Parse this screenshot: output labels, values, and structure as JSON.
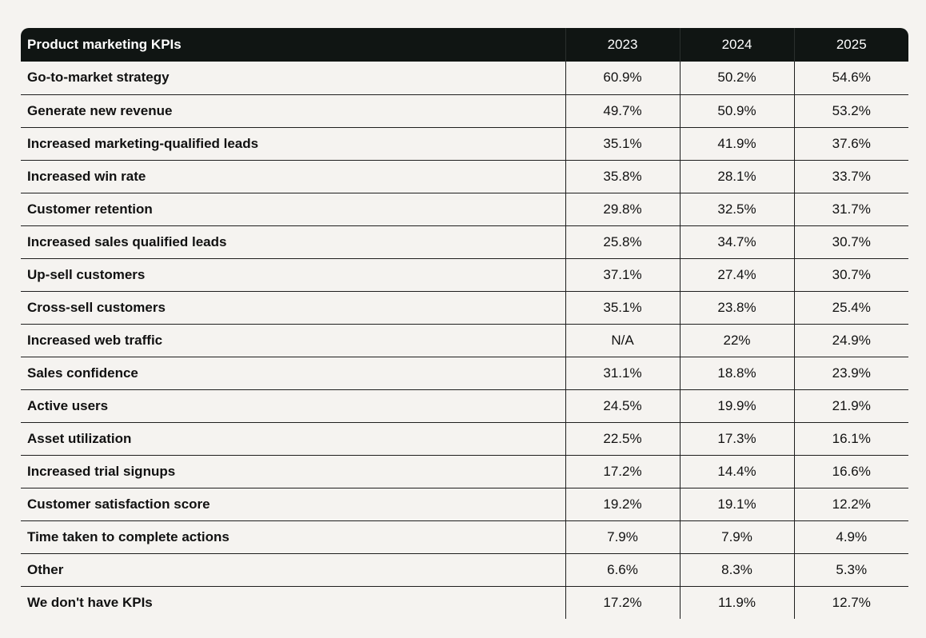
{
  "chart_data": {
    "type": "table",
    "title": "Product marketing KPIs",
    "columns": [
      "2023",
      "2024",
      "2025"
    ],
    "rows": [
      {
        "label": "Go-to-market strategy",
        "values": [
          "60.9%",
          "50.2%",
          "54.6%"
        ]
      },
      {
        "label": "Generate new revenue",
        "values": [
          "49.7%",
          "50.9%",
          "53.2%"
        ]
      },
      {
        "label": "Increased marketing-qualified leads",
        "values": [
          "35.1%",
          "41.9%",
          "37.6%"
        ]
      },
      {
        "label": "Increased win rate",
        "values": [
          "35.8%",
          "28.1%",
          "33.7%"
        ]
      },
      {
        "label": "Customer retention",
        "values": [
          "29.8%",
          "32.5%",
          "31.7%"
        ]
      },
      {
        "label": "Increased sales qualified leads",
        "values": [
          "25.8%",
          "34.7%",
          "30.7%"
        ]
      },
      {
        "label": "Up-sell customers",
        "values": [
          "37.1%",
          "27.4%",
          "30.7%"
        ]
      },
      {
        "label": "Cross-sell customers",
        "values": [
          "35.1%",
          "23.8%",
          "25.4%"
        ]
      },
      {
        "label": "Increased web traffic",
        "values": [
          "N/A",
          "22%",
          "24.9%"
        ]
      },
      {
        "label": "Sales confidence",
        "values": [
          "31.1%",
          "18.8%",
          "23.9%"
        ]
      },
      {
        "label": "Active users",
        "values": [
          "24.5%",
          "19.9%",
          "21.9%"
        ]
      },
      {
        "label": "Asset utilization",
        "values": [
          "22.5%",
          "17.3%",
          "16.1%"
        ]
      },
      {
        "label": "Increased trial signups",
        "values": [
          "17.2%",
          "14.4%",
          "16.6%"
        ]
      },
      {
        "label": "Customer satisfaction score",
        "values": [
          "19.2%",
          "19.1%",
          "12.2%"
        ]
      },
      {
        "label": "Time taken to complete actions",
        "values": [
          "7.9%",
          "7.9%",
          "4.9%"
        ]
      },
      {
        "label": "Other",
        "values": [
          "6.6%",
          "8.3%",
          "5.3%"
        ]
      },
      {
        "label": "We don't have KPIs",
        "values": [
          "17.2%",
          "11.9%",
          "12.7%"
        ]
      }
    ]
  }
}
